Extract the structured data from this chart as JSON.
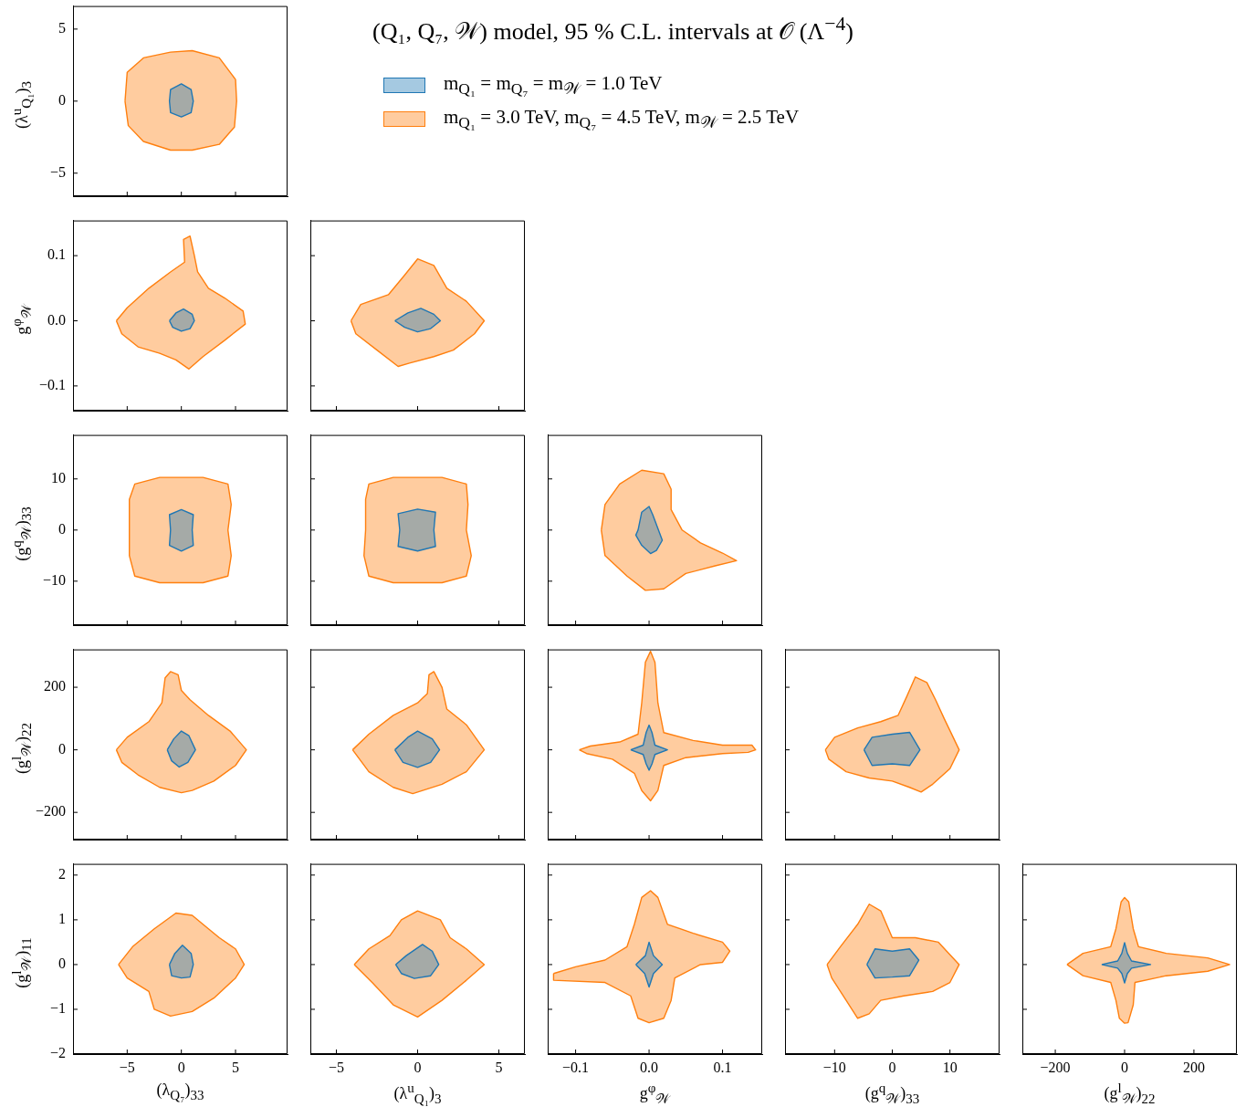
{
  "chart_data": [
    {
      "type": "area",
      "legend": "right",
      "ylabel": "(λ$^{u}$$_{Q₁}$)$_{3}$",
      "tick_labels": "y",
      "xlim": [
        -10,
        9.8
      ],
      "xticks": [
        {
          "value": -5,
          "label": null
        },
        {
          "value": 0,
          "label": null
        },
        {
          "value": 5,
          "label": null
        }
      ],
      "ylim": [
        -6.6,
        6.6
      ],
      "yticks": [
        {
          "value": -5,
          "label": "−5"
        },
        0,
        5
      ],
      "series": [
        {
          "name": "m$_{Q₁}$ = m$_{Q₇}$ = m$_{𝒲}$ = 1.0 TeV",
          "color": "#1f77b4",
          "x": [
            -1.1,
            -1,
            0,
            0.9,
            1.1,
            0.9,
            0,
            -1
          ],
          "values": [
            0,
            0.8,
            1.2,
            0.8,
            0,
            -0.8,
            -1.1,
            -0.8
          ]
        },
        {
          "name": "m$_{Q₁}$ = 3.0 TeV, m$_{Q₇}$ = 4.5 TeV, m$_{𝒲}$ = 2.5 TeV",
          "color": "#ff7f0e",
          "x": [
            -5.2,
            -5.0,
            -3.5,
            -1,
            1,
            3.5,
            5.0,
            5.1,
            4.9,
            3.5,
            1,
            -1,
            -3.5,
            -4.9
          ],
          "values": [
            0,
            2.0,
            3.0,
            3.4,
            3.5,
            3.0,
            1.5,
            0,
            -1.8,
            -3.0,
            -3.4,
            -3.4,
            -2.8,
            -1.7
          ]
        }
      ]
    },
    {
      "type": "area",
      "ylabel": "g$^{φ}$$_{𝒲}$",
      "tick_labels": "y",
      "xlim": [
        -10,
        9.8
      ],
      "xticks": [
        {
          "value": -5,
          "label": null
        },
        {
          "value": 0,
          "label": null
        },
        {
          "value": 5,
          "label": null
        }
      ],
      "ylim": [
        -0.138,
        0.154
      ],
      "yticks": [
        {
          "value": -0.1,
          "label": "−0.1"
        },
        {
          "value": 0,
          "label": "0.0"
        },
        0.1
      ],
      "series": [
        {
          "color": "#1f77b4",
          "x": [
            -1.1,
            -0.5,
            0.2,
            1,
            1.2,
            0.8,
            0,
            -0.8
          ],
          "values": [
            0,
            0.012,
            0.018,
            0.01,
            0,
            -0.012,
            -0.016,
            -0.01
          ]
        },
        {
          "color": "#ff7f0e",
          "x": [
            -6,
            -5.5,
            -4,
            -2,
            -0.5,
            0.7,
            2,
            4,
            5.9,
            5.7,
            4,
            2.5,
            1.5,
            1.2,
            0.8,
            0.2,
            0.3,
            -1,
            -3,
            -5
          ],
          "values": [
            0,
            -0.02,
            -0.04,
            -0.05,
            -0.06,
            -0.074,
            -0.055,
            -0.03,
            -0.005,
            0.015,
            0.035,
            0.05,
            0.075,
            0.1,
            0.13,
            0.125,
            0.09,
            0.075,
            0.05,
            0.02
          ]
        }
      ]
    },
    {
      "type": "area",
      "tick_labels": false,
      "xlim": [
        -6.6,
        6.6
      ],
      "xticks": [
        {
          "value": -5,
          "label": null
        },
        {
          "value": 0,
          "label": null
        },
        {
          "value": 5,
          "label": null
        }
      ],
      "ylim": [
        -0.138,
        0.154
      ],
      "yticks": [
        {
          "value": -0.1,
          "label": null
        },
        {
          "value": 0,
          "label": null
        },
        {
          "value": 0.1,
          "label": null
        }
      ],
      "series": [
        {
          "color": "#1f77b4",
          "x": [
            -1.4,
            -0.6,
            0.2,
            1,
            1.4,
            0.8,
            0,
            -0.8
          ],
          "values": [
            0,
            0.012,
            0.019,
            0.01,
            0,
            -0.012,
            -0.017,
            -0.01
          ]
        },
        {
          "color": "#ff7f0e",
          "x": [
            -4.1,
            -3.5,
            -1.8,
            -0.8,
            0,
            1,
            1.8,
            3,
            4.1,
            3.5,
            2.2,
            1,
            -0.5,
            -1.2,
            -2.5,
            -3.8
          ],
          "values": [
            0,
            0.025,
            0.04,
            0.07,
            0.095,
            0.085,
            0.05,
            0.03,
            0,
            -0.02,
            -0.045,
            -0.055,
            -0.065,
            -0.07,
            -0.045,
            -0.02
          ]
        }
      ]
    },
    {
      "type": "area",
      "ylabel": "(g$^{q}$$_{𝒲}$)$_{33}$",
      "tick_labels": "y",
      "xlim": [
        -10,
        9.8
      ],
      "xticks": [
        {
          "value": -5,
          "label": null
        },
        {
          "value": 0,
          "label": null
        },
        {
          "value": 5,
          "label": null
        }
      ],
      "ylim": [
        -18.6,
        18.6
      ],
      "yticks": [
        {
          "value": -10,
          "label": "−10"
        },
        0,
        10
      ],
      "series": [
        {
          "color": "#1f77b4",
          "x": [
            -1.0,
            -1.1,
            0,
            1.1,
            1.0,
            1.1,
            0,
            -1.1
          ],
          "values": [
            0,
            3,
            4,
            3,
            0,
            -3,
            -4.1,
            -3
          ]
        },
        {
          "color": "#ff7f0e",
          "x": [
            -4.8,
            -4.8,
            -4.3,
            -2,
            2,
            4.3,
            4.6,
            4.3,
            4.6,
            4.3,
            2,
            -2,
            -4.3,
            -4.8
          ],
          "values": [
            0,
            6,
            9,
            10.3,
            10.3,
            9,
            5,
            0,
            -5,
            -9,
            -10.3,
            -10.3,
            -9,
            -5
          ]
        }
      ]
    },
    {
      "type": "area",
      "tick_labels": false,
      "xlim": [
        -6.6,
        6.6
      ],
      "xticks": [
        {
          "value": -5,
          "label": null
        },
        {
          "value": 0,
          "label": null
        },
        {
          "value": 5,
          "label": null
        }
      ],
      "ylim": [
        -18.6,
        18.6
      ],
      "yticks": [
        {
          "value": -10,
          "label": null
        },
        {
          "value": 0,
          "label": null
        },
        {
          "value": 10,
          "label": null
        }
      ],
      "series": [
        {
          "color": "#1f77b4",
          "x": [
            -1.1,
            -1.2,
            0,
            1.1,
            1,
            1.1,
            0,
            -1.2
          ],
          "values": [
            0,
            3.2,
            4.1,
            3.5,
            0,
            -3.2,
            -4.1,
            -3.2
          ]
        },
        {
          "color": "#ff7f0e",
          "x": [
            -3.2,
            -3.2,
            -3,
            -1.5,
            1.5,
            3,
            3.1,
            3.0,
            3.3,
            3,
            1.5,
            -1.5,
            -3,
            -3.3
          ],
          "values": [
            0,
            6,
            9,
            10.3,
            10.3,
            9,
            5,
            0,
            -5,
            -9,
            -10.3,
            -10.3,
            -9,
            -5
          ]
        }
      ]
    },
    {
      "type": "area",
      "tick_labels": false,
      "xlim": [
        -0.138,
        0.154
      ],
      "xticks": [
        {
          "value": -0.1,
          "label": null
        },
        {
          "value": 0,
          "label": null
        },
        {
          "value": 0.1,
          "label": null
        }
      ],
      "ylim": [
        -18.6,
        18.6
      ],
      "yticks": [
        {
          "value": -10,
          "label": null
        },
        {
          "value": 0,
          "label": null
        },
        {
          "value": 10,
          "label": null
        }
      ],
      "series": [
        {
          "color": "#1f77b4",
          "x": [
            -0.015,
            -0.01,
            0,
            0.005,
            0.018,
            0.01,
            0.002,
            -0.01,
            -0.018
          ],
          "values": [
            0,
            3.5,
            4.6,
            3,
            -2,
            -4,
            -4.6,
            -3,
            -1
          ]
        },
        {
          "color": "#ff7f0e",
          "x": [
            -0.065,
            -0.06,
            -0.04,
            -0.01,
            0.02,
            0.03,
            0.03,
            0.045,
            0.07,
            0.1,
            0.119,
            0.09,
            0.05,
            0.02,
            -0.005,
            -0.03,
            -0.06,
            -0.062
          ],
          "values": [
            0,
            5,
            9,
            11.7,
            11,
            8,
            4,
            0,
            -2.5,
            -4.5,
            -6,
            -7,
            -8.5,
            -11.5,
            -11.8,
            -9,
            -5,
            -3
          ]
        }
      ]
    },
    {
      "type": "area",
      "ylabel": "(g$^{l}$$_{𝒲}$)$_{22}$",
      "tick_labels": "y",
      "xlim": [
        -10,
        9.8
      ],
      "xticks": [
        {
          "value": -5,
          "label": null
        },
        {
          "value": 0,
          "label": null
        },
        {
          "value": 5,
          "label": null
        }
      ],
      "ylim": [
        -287,
        321
      ],
      "yticks": [
        {
          "value": -200,
          "label": "−200"
        },
        0,
        200
      ],
      "series": [
        {
          "color": "#1f77b4",
          "x": [
            -1.3,
            -0.7,
            0,
            0.7,
            1.3,
            0.6,
            -0.2,
            -0.9
          ],
          "values": [
            0,
            35,
            60,
            45,
            0,
            -40,
            -55,
            -35
          ]
        },
        {
          "color": "#ff7f0e",
          "x": [
            -6,
            -5,
            -3,
            -1.8,
            -1.5,
            -1,
            -0.3,
            0,
            0.8,
            2.5,
            4.5,
            6,
            5,
            3,
            1,
            0,
            -2,
            -4,
            -5.5
          ],
          "values": [
            0,
            40,
            90,
            150,
            230,
            250,
            240,
            190,
            160,
            110,
            60,
            0,
            -50,
            -100,
            -130,
            -137,
            -120,
            -80,
            -40
          ]
        }
      ]
    },
    {
      "type": "area",
      "tick_labels": false,
      "xlim": [
        -6.6,
        6.6
      ],
      "xticks": [
        {
          "value": -5,
          "label": null
        },
        {
          "value": 0,
          "label": null
        },
        {
          "value": 5,
          "label": null
        }
      ],
      "ylim": [
        -287,
        321
      ],
      "yticks": [
        {
          "value": -200,
          "label": null
        },
        {
          "value": 0,
          "label": null
        },
        {
          "value": 200,
          "label": null
        }
      ],
      "series": [
        {
          "color": "#1f77b4",
          "x": [
            -1.4,
            -0.6,
            0,
            0.9,
            1.35,
            0.8,
            0,
            -0.9
          ],
          "values": [
            0,
            40,
            60,
            35,
            0,
            -40,
            -56,
            -40
          ]
        },
        {
          "color": "#ff7f0e",
          "x": [
            -4,
            -3,
            -1.5,
            0,
            0.6,
            0.7,
            1,
            1.5,
            1.8,
            3,
            4.1,
            3,
            1.5,
            -0.3,
            -1.5,
            -3
          ],
          "values": [
            0,
            50,
            110,
            150,
            180,
            240,
            250,
            200,
            130,
            80,
            0,
            -70,
            -110,
            -140,
            -120,
            -70
          ]
        }
      ]
    },
    {
      "type": "area",
      "tick_labels": false,
      "xlim": [
        -0.138,
        0.154
      ],
      "xticks": [
        {
          "value": -0.1,
          "label": null
        },
        {
          "value": 0,
          "label": null
        },
        {
          "value": 0.1,
          "label": null
        }
      ],
      "ylim": [
        -287,
        321
      ],
      "yticks": [
        {
          "value": -200,
          "label": null
        },
        {
          "value": 0,
          "label": null
        },
        {
          "value": 200,
          "label": null
        }
      ],
      "series": [
        {
          "color": "#1f77b4",
          "x": [
            -0.025,
            -0.008,
            -0.004,
            0,
            0.004,
            0.008,
            0.025,
            0.008,
            0.004,
            0,
            -0.004,
            -0.008
          ],
          "values": [
            0,
            15,
            55,
            79,
            55,
            15,
            0,
            -15,
            -45,
            -65,
            -45,
            -15
          ]
        },
        {
          "color": "#ff7f0e",
          "x": [
            -0.095,
            -0.08,
            -0.04,
            -0.015,
            -0.01,
            -0.005,
            0.002,
            0.008,
            0.012,
            0.02,
            0.06,
            0.1,
            0.14,
            0.145,
            0.135,
            0.1,
            0.05,
            0.02,
            0.012,
            0.002,
            -0.01,
            -0.02,
            -0.05,
            -0.085
          ],
          "values": [
            0,
            12,
            25,
            50,
            150,
            280,
            315,
            280,
            150,
            55,
            30,
            15,
            15,
            0,
            -8,
            -12,
            -25,
            -50,
            -130,
            -163,
            -130,
            -75,
            -30,
            -12
          ]
        }
      ]
    },
    {
      "type": "area",
      "tick_labels": false,
      "xlim": [
        -18.6,
        18.6
      ],
      "xticks": [
        {
          "value": -10,
          "label": null
        },
        {
          "value": 0,
          "label": null
        },
        {
          "value": 10,
          "label": null
        }
      ],
      "ylim": [
        -287,
        321
      ],
      "yticks": [
        {
          "value": -200,
          "label": null
        },
        {
          "value": 0,
          "label": null
        },
        {
          "value": 200,
          "label": null
        }
      ],
      "series": [
        {
          "color": "#1f77b4",
          "x": [
            -4.9,
            -3.5,
            0,
            3,
            4.8,
            3,
            0,
            -3.5
          ],
          "values": [
            0,
            40,
            50,
            56,
            0,
            -50,
            -45,
            -50
          ]
        },
        {
          "color": "#ff7f0e",
          "x": [
            -11.6,
            -10,
            -6,
            -2,
            1,
            2.5,
            4,
            6,
            7.5,
            9,
            11.6,
            10,
            7,
            5,
            3,
            0,
            -4,
            -8,
            -11
          ],
          "values": [
            0,
            40,
            70,
            90,
            110,
            170,
            233,
            215,
            160,
            100,
            0,
            -60,
            -110,
            -135,
            -120,
            -100,
            -90,
            -70,
            -30
          ]
        }
      ]
    },
    {
      "type": "area",
      "xlabel": "(λ$_{Q₇}$)$_{33}$",
      "ylabel": "(g$^{l}$$_{𝒲}$)$_{11}$",
      "xlim": [
        -10,
        9.8
      ],
      "xticks": [
        {
          "value": -5,
          "label": "−5"
        },
        0,
        5
      ],
      "ylim": [
        -2,
        2.25
      ],
      "yticks": [
        {
          "value": -2,
          "label": "−2"
        },
        {
          "value": -1,
          "label": "−1"
        },
        0,
        1,
        2
      ],
      "series": [
        {
          "color": "#1f77b4",
          "x": [
            -1.1,
            -0.6,
            0.1,
            0.9,
            1.1,
            0.8,
            0,
            -0.9
          ],
          "values": [
            0,
            0.25,
            0.43,
            0.25,
            0,
            -0.28,
            -0.3,
            -0.25
          ]
        },
        {
          "color": "#ff7f0e",
          "x": [
            -5.8,
            -4.5,
            -2.5,
            -0.5,
            1,
            2.5,
            3.5,
            5,
            5.8,
            5,
            3,
            1,
            -1,
            -2.5,
            -3,
            -5
          ],
          "values": [
            0,
            0.4,
            0.8,
            1.15,
            1.1,
            0.8,
            0.6,
            0.35,
            0,
            -0.3,
            -0.75,
            -1.05,
            -1.15,
            -1.0,
            -0.6,
            -0.3
          ]
        }
      ]
    },
    {
      "type": "area",
      "xlabel": "(λ$^{u}$$_{Q₁}$)$_{3}$",
      "tick_labels": "x",
      "xlim": [
        -6.6,
        6.6
      ],
      "xticks": [
        {
          "value": -5,
          "label": "−5"
        },
        0,
        5
      ],
      "ylim": [
        -2,
        2.25
      ],
      "yticks": [
        {
          "value": -2,
          "label": null
        },
        {
          "value": -1,
          "label": null
        },
        {
          "value": 0,
          "label": null
        },
        {
          "value": 1,
          "label": null
        },
        {
          "value": 2,
          "label": null
        }
      ],
      "series": [
        {
          "color": "#1f77b4",
          "x": [
            -1.35,
            -0.7,
            0.3,
            0.9,
            1.3,
            0.8,
            -0.2,
            -1
          ],
          "values": [
            0,
            0.2,
            0.45,
            0.3,
            0,
            -0.25,
            -0.31,
            -0.2
          ]
        },
        {
          "color": "#ff7f0e",
          "x": [
            -3.9,
            -3,
            -1.7,
            -1,
            0,
            1.4,
            2,
            3,
            4.1,
            3,
            1.5,
            0,
            -1.5,
            -2.8
          ],
          "values": [
            0,
            0.35,
            0.65,
            1.0,
            1.2,
            1.0,
            0.6,
            0.35,
            0,
            -0.35,
            -0.8,
            -1.17,
            -0.9,
            -0.4
          ]
        }
      ]
    },
    {
      "type": "area",
      "xlabel": "g$^{φ}$$_{𝒲}$",
      "tick_labels": "x",
      "xlim": [
        -0.138,
        0.154
      ],
      "xticks": [
        {
          "value": -0.1,
          "label": "−0.1"
        },
        {
          "value": 0,
          "label": "0.0"
        },
        0.1
      ],
      "ylim": [
        -2,
        2.25
      ],
      "yticks": [
        {
          "value": -2,
          "label": null
        },
        {
          "value": -1,
          "label": null
        },
        {
          "value": 0,
          "label": null
        },
        {
          "value": 1,
          "label": null
        },
        {
          "value": 2,
          "label": null
        }
      ],
      "series": [
        {
          "color": "#1f77b4",
          "x": [
            -0.018,
            -0.005,
            0,
            0.006,
            0.018,
            0.006,
            0,
            -0.006
          ],
          "values": [
            0,
            0.2,
            0.5,
            0.2,
            0,
            -0.2,
            -0.5,
            -0.2
          ]
        },
        {
          "color": "#ff7f0e",
          "x": [
            -0.13,
            -0.1,
            -0.06,
            -0.03,
            -0.02,
            -0.01,
            0.002,
            0.012,
            0.025,
            0.06,
            0.1,
            0.11,
            0.1,
            0.07,
            0.035,
            0.03,
            0.02,
            0,
            -0.015,
            -0.025,
            -0.06,
            -0.13
          ],
          "values": [
            -0.2,
            -0.05,
            0.1,
            0.4,
            0.9,
            1.5,
            1.65,
            1.5,
            0.9,
            0.7,
            0.5,
            0.3,
            0.05,
            0,
            -0.3,
            -0.8,
            -1.2,
            -1.3,
            -1.2,
            -0.7,
            -0.4,
            -0.35
          ]
        }
      ]
    },
    {
      "type": "area",
      "xlabel": "(g$^{q}$$_{𝒲}$)$_{33}$",
      "tick_labels": "x",
      "xlim": [
        -18.6,
        18.6
      ],
      "xticks": [
        {
          "value": -10,
          "label": "−10"
        },
        0,
        10
      ],
      "ylim": [
        -2,
        2.25
      ],
      "yticks": [
        {
          "value": -2,
          "label": null
        },
        {
          "value": -1,
          "label": null
        },
        {
          "value": 0,
          "label": null
        },
        {
          "value": 1,
          "label": null
        },
        {
          "value": 2,
          "label": null
        }
      ],
      "series": [
        {
          "color": "#1f77b4",
          "x": [
            -4.4,
            -3,
            0,
            3,
            4.6,
            3,
            0,
            -3
          ],
          "values": [
            0,
            0.35,
            0.3,
            0.35,
            0.1,
            -0.25,
            -0.28,
            -0.3
          ]
        },
        {
          "color": "#ff7f0e",
          "x": [
            -11.3,
            -9,
            -6,
            -4,
            -2,
            0,
            4,
            8,
            11.6,
            10,
            7,
            2,
            -2,
            -4,
            -6,
            -8,
            -10.5
          ],
          "values": [
            0,
            0.4,
            0.9,
            1.35,
            1.2,
            0.6,
            0.6,
            0.5,
            0,
            -0.4,
            -0.6,
            -0.7,
            -0.8,
            -1.1,
            -1.2,
            -0.8,
            -0.3
          ]
        }
      ]
    },
    {
      "type": "area",
      "xlabel": "(g$^{l}$$_{𝒲}$)$_{22}$",
      "tick_labels": "x",
      "xlim": [
        -295,
        324
      ],
      "xticks": [
        {
          "value": -200,
          "label": "−200"
        },
        0,
        200
      ],
      "ylim": [
        -2,
        2.25
      ],
      "yticks": [
        {
          "value": -2,
          "label": null
        },
        {
          "value": -1,
          "label": null
        },
        {
          "value": 0,
          "label": null
        },
        {
          "value": 1,
          "label": null
        },
        {
          "value": 2,
          "label": null
        }
      ],
      "series": [
        {
          "color": "#1f77b4",
          "x": [
            -66,
            -20,
            -8,
            0,
            8,
            20,
            75,
            20,
            8,
            0,
            -8,
            -20
          ],
          "values": [
            0,
            0.08,
            0.25,
            0.49,
            0.25,
            0.08,
            0,
            -0.08,
            -0.2,
            -0.41,
            -0.2,
            -0.08
          ]
        },
        {
          "color": "#ff7f0e",
          "x": [
            -166,
            -120,
            -40,
            -25,
            -10,
            0,
            12,
            25,
            40,
            120,
            240,
            303,
            240,
            120,
            30,
            25,
            10,
            0,
            -15,
            -25,
            -40,
            -120
          ],
          "values": [
            0,
            0.25,
            0.4,
            0.8,
            1.4,
            1.5,
            1.4,
            0.8,
            0.4,
            0.25,
            0.15,
            0,
            -0.15,
            -0.25,
            -0.4,
            -0.9,
            -1.3,
            -1.31,
            -1.2,
            -0.8,
            -0.4,
            -0.25
          ]
        }
      ]
    },
    {
      "type": "other",
      "title": "(Q₁, Q₇, 𝒲) model, 95 % C.L. intervals at 𝒪 (Λ$^{−4}$)"
    }
  ]
}
